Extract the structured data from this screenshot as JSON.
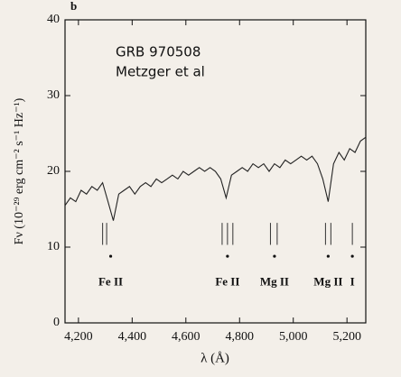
{
  "chart_data": {
    "type": "line",
    "panel_label": "b",
    "annotations": [
      "GRB 970508",
      "Metzger et al"
    ],
    "xlabel": "λ (Å)",
    "ylabel": "Fν (10⁻²⁹ erg cm⁻² s⁻¹ Hz⁻¹)",
    "xlim": [
      4150,
      5270
    ],
    "ylim": [
      0,
      40
    ],
    "xticks": [
      {
        "value": 4200,
        "label": "4,200"
      },
      {
        "value": 4400,
        "label": "4,400"
      },
      {
        "value": 4600,
        "label": "4,600"
      },
      {
        "value": 4800,
        "label": "4,800"
      },
      {
        "value": 5000,
        "label": "5,000"
      },
      {
        "value": 5200,
        "label": "5,200"
      }
    ],
    "yticks": [
      0,
      10,
      20,
      30,
      40
    ],
    "x": [
      4150,
      4170,
      4190,
      4210,
      4230,
      4250,
      4270,
      4290,
      4310,
      4330,
      4350,
      4370,
      4390,
      4410,
      4430,
      4450,
      4470,
      4490,
      4510,
      4530,
      4550,
      4570,
      4590,
      4610,
      4630,
      4650,
      4670,
      4690,
      4710,
      4730,
      4750,
      4770,
      4790,
      4810,
      4830,
      4850,
      4870,
      4890,
      4910,
      4930,
      4950,
      4970,
      4990,
      5010,
      5030,
      5050,
      5070,
      5090,
      5110,
      5130,
      5150,
      5170,
      5190,
      5210,
      5230,
      5250,
      5270
    ],
    "series": [
      {
        "color": "#222222",
        "values": [
          15.5,
          16.5,
          16,
          17.5,
          17,
          18,
          17.5,
          18.5,
          16,
          13.5,
          17,
          17.5,
          18,
          17,
          18,
          18.5,
          18,
          19,
          18.5,
          19,
          19.5,
          19,
          20,
          19.5,
          20,
          20.5,
          20,
          20.5,
          20,
          19,
          16.5,
          19.5,
          20,
          20.5,
          20,
          21,
          20.5,
          21,
          20,
          21,
          20.5,
          21.5,
          21,
          21.5,
          22,
          21.5,
          22,
          21,
          19,
          16,
          21,
          22.5,
          21.5,
          23,
          22.5,
          24,
          24.5
        ]
      }
    ],
    "features": [
      {
        "label": "Fe II",
        "x": 4320,
        "lines": [
          4290,
          4305
        ]
      },
      {
        "label": "Fe II",
        "x": 4755,
        "lines": [
          4735,
          4755,
          4775
        ]
      },
      {
        "label": "Mg II",
        "x": 4930,
        "lines": [
          4915,
          4940
        ]
      },
      {
        "label": "Mg II",
        "x": 5130,
        "lines": [
          5120,
          5140
        ]
      },
      {
        "label": "I",
        "x": 5220,
        "lines": [
          5220
        ]
      }
    ]
  }
}
